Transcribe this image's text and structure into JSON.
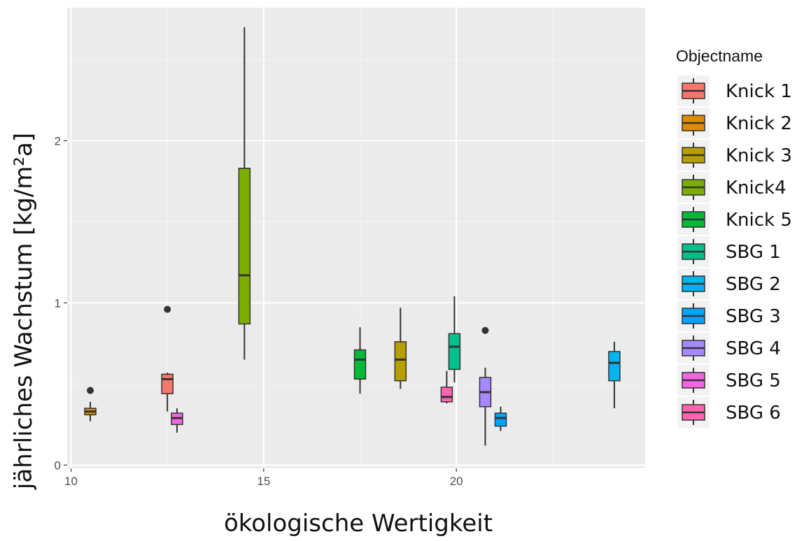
{
  "chart_data": {
    "type": "boxplot",
    "xlabel": "ökologische Wertigkeit",
    "ylabel": "jährliches Wachstum [kg/m²a]",
    "xlim": [
      9.9,
      24.9
    ],
    "ylim": [
      -0.02,
      2.82
    ],
    "xticks": [
      10,
      15,
      20
    ],
    "yticks": [
      0,
      1,
      2
    ],
    "grid": true,
    "legend": {
      "title": "Objectname",
      "position": "right",
      "entries": [
        {
          "name": "Knick 1",
          "color": "#F8766D"
        },
        {
          "name": "Knick 2",
          "color": "#DE8C00"
        },
        {
          "name": "Knick 3",
          "color": "#B79F00"
        },
        {
          "name": "Knick4",
          "color": "#7CAE00"
        },
        {
          "name": "Knick 5",
          "color": "#00BA38"
        },
        {
          "name": "SBG 1",
          "color": "#00C08B"
        },
        {
          "name": "SBG 2",
          "color": "#00B4F0"
        },
        {
          "name": "SBG 3",
          "color": "#00A5FF"
        },
        {
          "name": "SBG 4",
          "color": "#A58AFF"
        },
        {
          "name": "SBG 5",
          "color": "#F564E3"
        },
        {
          "name": "SBG 6",
          "color": "#FF64B0"
        }
      ]
    },
    "boxes": [
      {
        "series": "Knick 2",
        "x": 10.5,
        "min": 0.27,
        "q1": 0.31,
        "median": 0.33,
        "q3": 0.35,
        "max": 0.39,
        "outliers": [
          0.46
        ]
      },
      {
        "series": "Knick 1",
        "x": 12.5,
        "min": 0.33,
        "q1": 0.44,
        "median": 0.53,
        "q3": 0.56,
        "max": 0.57,
        "outliers": [
          0.96
        ]
      },
      {
        "series": "SBG 5",
        "x": 12.75,
        "min": 0.2,
        "q1": 0.25,
        "median": 0.29,
        "q3": 0.32,
        "max": 0.35,
        "outliers": []
      },
      {
        "series": "Knick4",
        "x": 14.5,
        "min": 0.65,
        "q1": 0.87,
        "median": 1.17,
        "q3": 1.83,
        "max": 2.7,
        "outliers": []
      },
      {
        "series": "Knick 5",
        "x": 17.5,
        "min": 0.44,
        "q1": 0.53,
        "median": 0.65,
        "q3": 0.71,
        "max": 0.85,
        "outliers": []
      },
      {
        "series": "Knick 3",
        "x": 18.55,
        "min": 0.47,
        "q1": 0.52,
        "median": 0.65,
        "q3": 0.76,
        "max": 0.97,
        "outliers": []
      },
      {
        "series": "SBG 6",
        "x": 19.75,
        "min": 0.38,
        "q1": 0.39,
        "median": 0.42,
        "q3": 0.48,
        "max": 0.58,
        "outliers": []
      },
      {
        "series": "SBG 1",
        "x": 19.95,
        "min": 0.51,
        "q1": 0.59,
        "median": 0.73,
        "q3": 0.81,
        "max": 1.04,
        "outliers": []
      },
      {
        "series": "SBG 4",
        "x": 20.75,
        "min": 0.12,
        "q1": 0.36,
        "median": 0.45,
        "q3": 0.54,
        "max": 0.6,
        "outliers": [
          0.83
        ]
      },
      {
        "series": "SBG 3",
        "x": 21.15,
        "min": 0.21,
        "q1": 0.24,
        "median": 0.29,
        "q3": 0.32,
        "max": 0.36,
        "outliers": []
      },
      {
        "series": "SBG 2",
        "x": 24.1,
        "min": 0.35,
        "q1": 0.52,
        "median": 0.63,
        "q3": 0.7,
        "max": 0.76,
        "outliers": []
      }
    ]
  }
}
